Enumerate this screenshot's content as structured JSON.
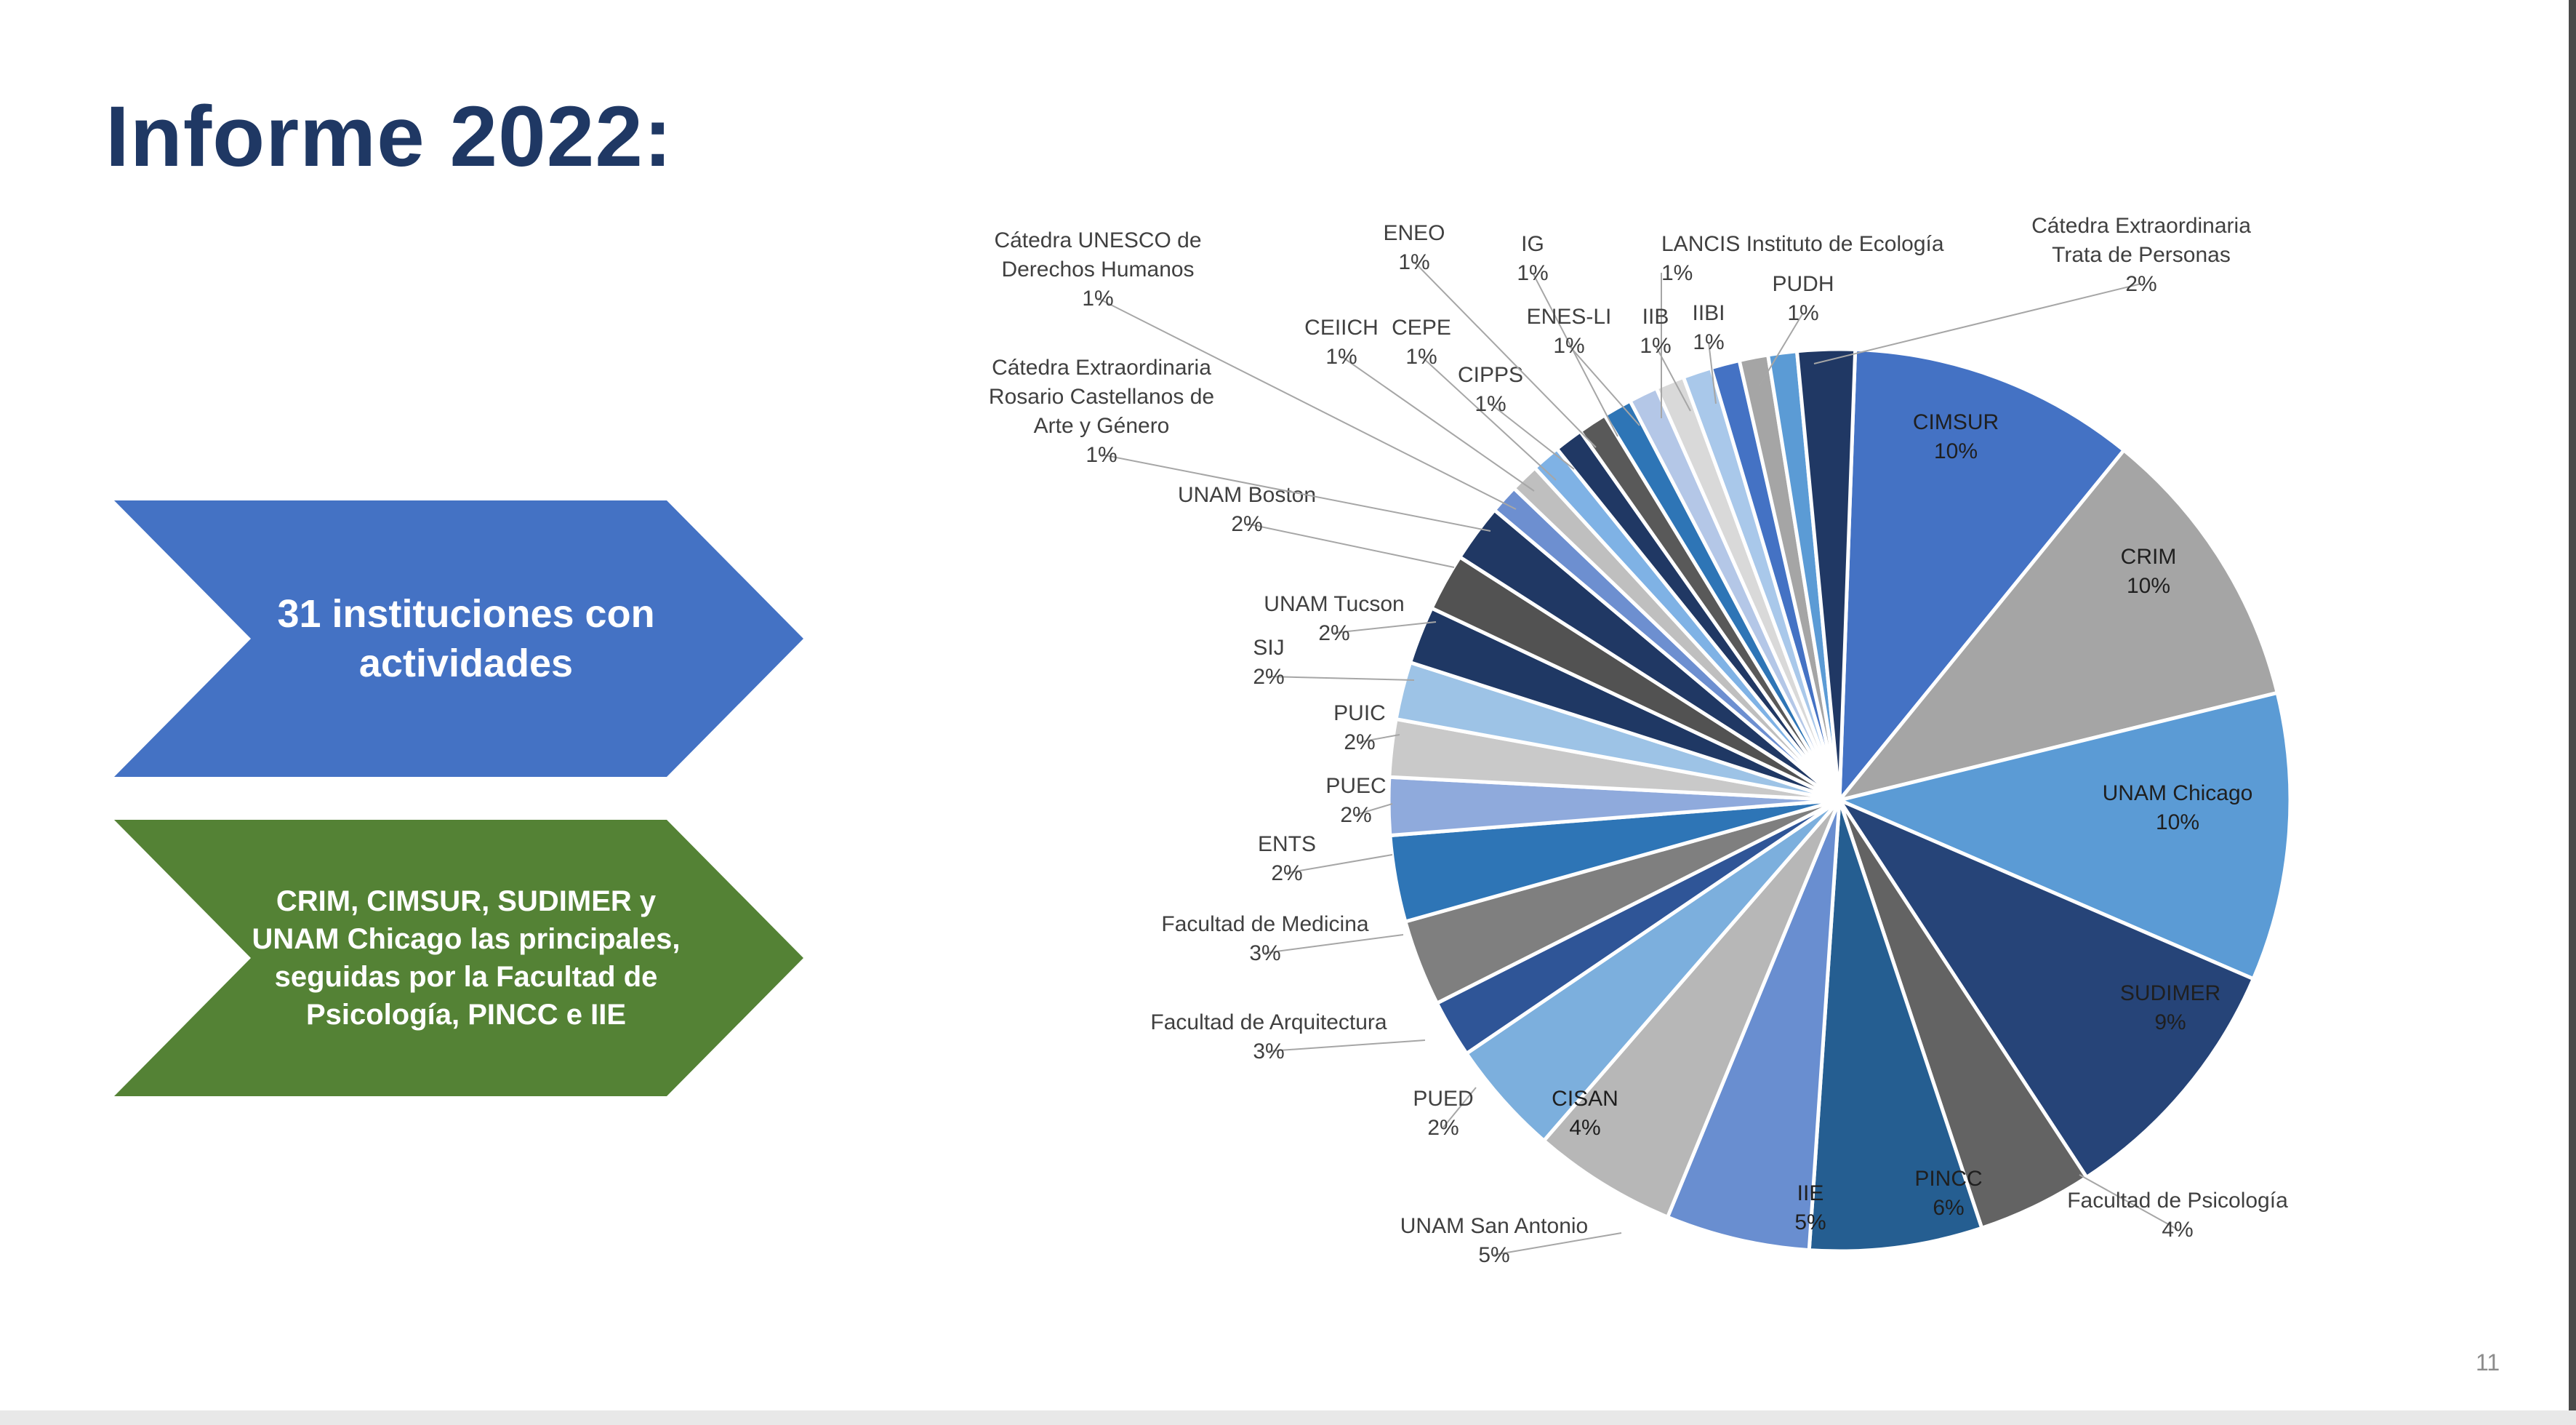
{
  "slide": {
    "title": "Informe 2022:",
    "number": "11"
  },
  "callouts": [
    {
      "text": "31 instituciones con actividades",
      "color": "#4472c4"
    },
    {
      "text": "CRIM, CIMSUR, SUDIMER y UNAM Chicago las principales, seguidas por la Facultad de Psicología, PINCC e IIE",
      "color": "#548235"
    }
  ],
  "chart_data": {
    "type": "pie",
    "title": "",
    "slices": [
      {
        "label": "CIMSUR",
        "pct": "10%",
        "value": 10,
        "color": "#4472c4"
      },
      {
        "label": "CRIM",
        "pct": "10%",
        "value": 10,
        "color": "#a5a5a5"
      },
      {
        "label": "UNAM Chicago",
        "pct": "10%",
        "value": 10,
        "color": "#5b9bd5"
      },
      {
        "label": "SUDIMER",
        "pct": "9%",
        "value": 9,
        "color": "#264478"
      },
      {
        "label": "Facultad de Psicología",
        "pct": "4%",
        "value": 4,
        "color": "#636363"
      },
      {
        "label": "PINCC",
        "pct": "6%",
        "value": 6,
        "color": "#255e91"
      },
      {
        "label": "IIE",
        "pct": "5%",
        "value": 5,
        "color": "#698ed0"
      },
      {
        "label": "UNAM San Antonio",
        "pct": "5%",
        "value": 5,
        "color": "#b7b7b7"
      },
      {
        "label": "CISAN",
        "pct": "4%",
        "value": 4,
        "color": "#7cafdd"
      },
      {
        "label": "PUED",
        "pct": "2%",
        "value": 2,
        "color": "#2f5597"
      },
      {
        "label": "Facultad de Arquitectura",
        "pct": "3%",
        "value": 3,
        "color": "#7f7f7f"
      },
      {
        "label": "Facultad de Medicina",
        "pct": "3%",
        "value": 3,
        "color": "#2e75b6"
      },
      {
        "label": "ENTS",
        "pct": "2%",
        "value": 2,
        "color": "#8faadc"
      },
      {
        "label": "PUEC",
        "pct": "2%",
        "value": 2,
        "color": "#c9c9c9"
      },
      {
        "label": "PUIC",
        "pct": "2%",
        "value": 2,
        "color": "#9dc3e6"
      },
      {
        "label": "SIJ",
        "pct": "2%",
        "value": 2,
        "color": "#1f3864"
      },
      {
        "label": "UNAM Tucson",
        "pct": "2%",
        "value": 2,
        "color": "#525252"
      },
      {
        "label": "UNAM Boston",
        "pct": "2%",
        "value": 2,
        "color": "#203864"
      },
      {
        "label": "Cátedra Extraordinaria Rosario Castellanos de Arte y Género",
        "pct": "1%",
        "value": 1,
        "color": "#6d8fd0"
      },
      {
        "label": "Cátedra UNESCO de Derechos Humanos",
        "pct": "1%",
        "value": 1,
        "color": "#bfbfbf"
      },
      {
        "label": "CEIICH",
        "pct": "1%",
        "value": 1,
        "color": "#7fb2e5"
      },
      {
        "label": "CEPE",
        "pct": "1%",
        "value": 1,
        "color": "#203864"
      },
      {
        "label": "CIPPS",
        "pct": "1%",
        "value": 1,
        "color": "#595959"
      },
      {
        "label": "ENEO",
        "pct": "1%",
        "value": 1,
        "color": "#2e75b6"
      },
      {
        "label": "IG",
        "pct": "1%",
        "value": 1,
        "color": "#b4c7e7"
      },
      {
        "label": "ENES-LI",
        "pct": "1%",
        "value": 1,
        "color": "#d9d9d9"
      },
      {
        "label": "LANCIS Instituto de Ecología",
        "pct": "1%",
        "value": 1,
        "color": "#a9c8ea"
      },
      {
        "label": "IIB",
        "pct": "1%",
        "value": 1,
        "color": "#4472c4"
      },
      {
        "label": "IIBI",
        "pct": "1%",
        "value": 1,
        "color": "#a5a5a5"
      },
      {
        "label": "PUDH",
        "pct": "1%",
        "value": 1,
        "color": "#5b9bd5"
      },
      {
        "label": "Cátedra Extraordinaria Trata de Personas",
        "pct": "2%",
        "value": 2,
        "color": "#203864"
      }
    ]
  }
}
